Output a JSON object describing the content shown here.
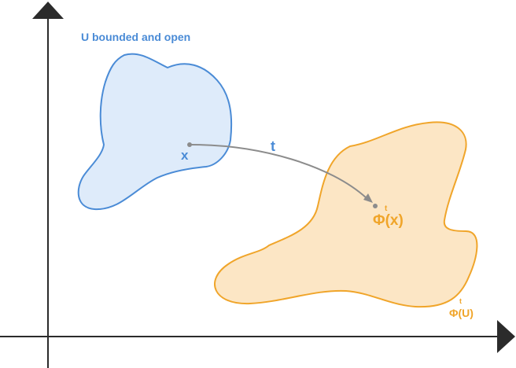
{
  "colors": {
    "axis": "#2b2b2b",
    "blue_stroke": "#4a8bd6",
    "blue_fill": "#deebfa",
    "orange_stroke": "#f0a52a",
    "orange_fill": "#fce6c5",
    "arrow": "#8c8c8c",
    "point": "#8c8c8c"
  },
  "labels": {
    "region_u": "U bounded and open",
    "point_x": "x",
    "time_t": "t",
    "phi_x_base": "Φ(x)",
    "phi_x_sup": "t",
    "phi_u_base": "Φ(U)",
    "phi_u_sup": "t"
  }
}
